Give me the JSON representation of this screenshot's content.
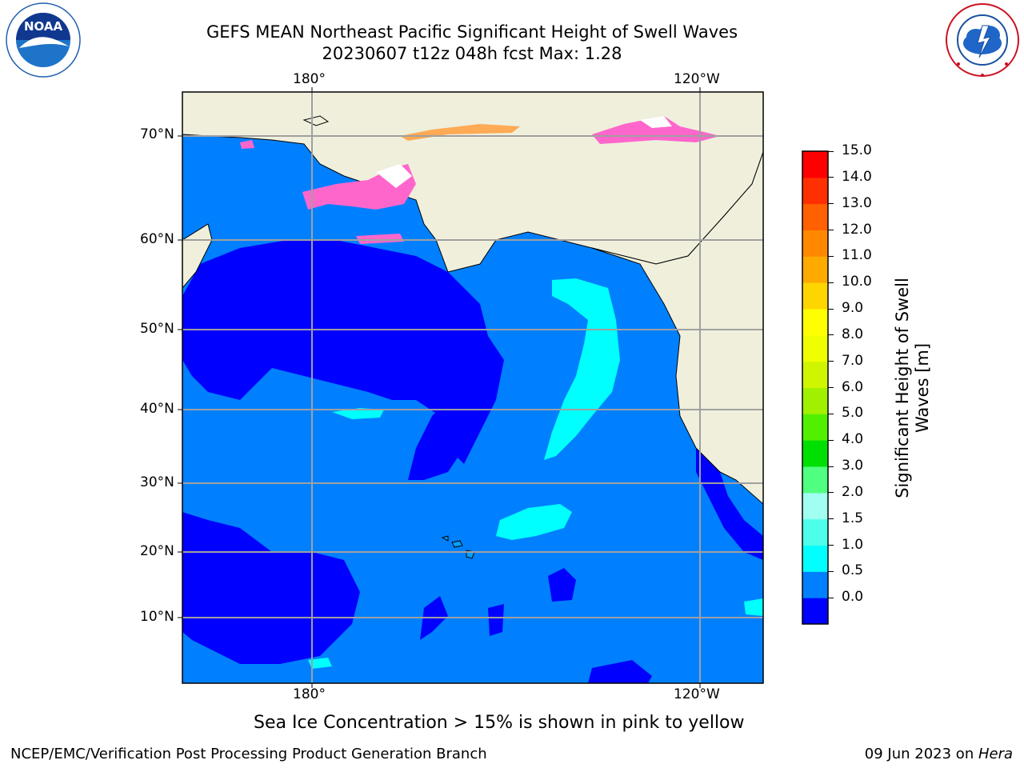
{
  "title": {
    "line1": "GEFS MEAN Northeast Pacific Significant Height of Swell Waves",
    "line2": "20230607 t12z 048h fcst   Max: 1.28"
  },
  "logos": {
    "left": {
      "name": "noaa-logo",
      "text": "NOAA",
      "ring_text": "NATIONAL OCEANIC AND ATMOSPHERIC ADMINISTRATION · U.S. DEPARTMENT OF COMMERCE"
    },
    "right": {
      "name": "nws-logo",
      "ring_text": "NATIONAL WEATHER SERVICE"
    }
  },
  "map": {
    "lon_labels_top": [
      "180°",
      "120°W"
    ],
    "lon_labels_bottom": [
      "180°",
      "120°W"
    ],
    "lat_labels": [
      "70°N",
      "60°N",
      "50°N",
      "40°N",
      "30°N",
      "20°N",
      "10°N"
    ]
  },
  "colorbar": {
    "label": "Significant Height of Swell Waves [m]",
    "label_line1": "Significant Height of Swell",
    "label_line2": "Waves [m]",
    "ticks": [
      "15.0",
      "14.0",
      "13.0",
      "12.0",
      "11.0",
      "10.0",
      "9.0",
      "8.0",
      "7.0",
      "6.0",
      "5.0",
      "4.0",
      "3.0",
      "2.0",
      "1.5",
      "1.0",
      "0.5",
      "0.0"
    ],
    "colors": [
      "#0000ff",
      "#0080ff",
      "#00ffff",
      "#4dffea",
      "#a0fff0",
      "#50ff80",
      "#00e000",
      "#50f000",
      "#a0f000",
      "#d0f500",
      "#f0ff00",
      "#ffff00",
      "#ffd500",
      "#ffaa00",
      "#ff8800",
      "#ff6000",
      "#ff3000",
      "#ff0000"
    ]
  },
  "note": "Sea Ice Concentration > 15% is shown in pink to yellow",
  "footer": {
    "left": "NCEP/EMC/Verification Post Processing Product Generation Branch",
    "right_prefix": "09 Jun 2023 on ",
    "right_host": "Hera"
  }
}
